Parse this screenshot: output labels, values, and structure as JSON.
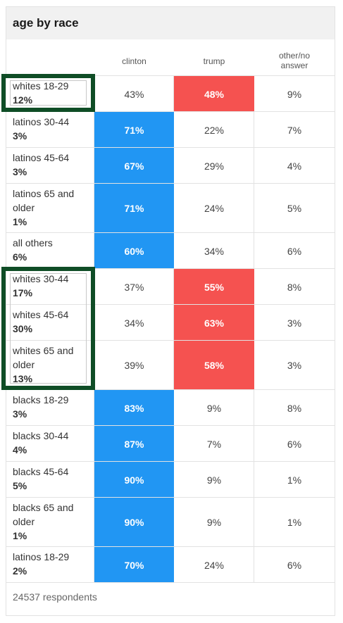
{
  "title": "age by race",
  "columns": [
    "clinton",
    "trump",
    "other/no answer"
  ],
  "footer": "24537 respondents",
  "colors": {
    "clinton": "#2196f3",
    "trump": "#f55250",
    "highlight": "#0f4d26"
  },
  "chart_data": {
    "type": "table",
    "title": "age by race",
    "columns": [
      "clinton",
      "trump",
      "other/no answer"
    ],
    "rows": [
      {
        "name": "whites 18-29",
        "share": "12%",
        "values": [
          "43%",
          "48%",
          "9%"
        ],
        "winner": "trump",
        "highlighted": true
      },
      {
        "name": "latinos 30-44",
        "share": "3%",
        "values": [
          "71%",
          "22%",
          "7%"
        ],
        "winner": "clinton",
        "highlighted": false
      },
      {
        "name": "latinos 45-64",
        "share": "3%",
        "values": [
          "67%",
          "29%",
          "4%"
        ],
        "winner": "clinton",
        "highlighted": false
      },
      {
        "name": "latinos 65 and older",
        "share": "1%",
        "values": [
          "71%",
          "24%",
          "5%"
        ],
        "winner": "clinton",
        "highlighted": false
      },
      {
        "name": "all others",
        "share": "6%",
        "values": [
          "60%",
          "34%",
          "6%"
        ],
        "winner": "clinton",
        "highlighted": false
      },
      {
        "name": "whites 30-44",
        "share": "17%",
        "values": [
          "37%",
          "55%",
          "8%"
        ],
        "winner": "trump",
        "highlighted": true
      },
      {
        "name": "whites 45-64",
        "share": "30%",
        "values": [
          "34%",
          "63%",
          "3%"
        ],
        "winner": "trump",
        "highlighted": true
      },
      {
        "name": "whites 65 and older",
        "share": "13%",
        "values": [
          "39%",
          "58%",
          "3%"
        ],
        "winner": "trump",
        "highlighted": true
      },
      {
        "name": "blacks 18-29",
        "share": "3%",
        "values": [
          "83%",
          "9%",
          "8%"
        ],
        "winner": "clinton",
        "highlighted": false
      },
      {
        "name": "blacks 30-44",
        "share": "4%",
        "values": [
          "87%",
          "7%",
          "6%"
        ],
        "winner": "clinton",
        "highlighted": false
      },
      {
        "name": "blacks 45-64",
        "share": "5%",
        "values": [
          "90%",
          "9%",
          "1%"
        ],
        "winner": "clinton",
        "highlighted": false
      },
      {
        "name": "blacks 65 and older",
        "share": "1%",
        "values": [
          "90%",
          "9%",
          "1%"
        ],
        "winner": "clinton",
        "highlighted": false
      },
      {
        "name": "latinos 18-29",
        "share": "2%",
        "values": [
          "70%",
          "24%",
          "6%"
        ],
        "winner": "clinton",
        "highlighted": false
      }
    ]
  }
}
